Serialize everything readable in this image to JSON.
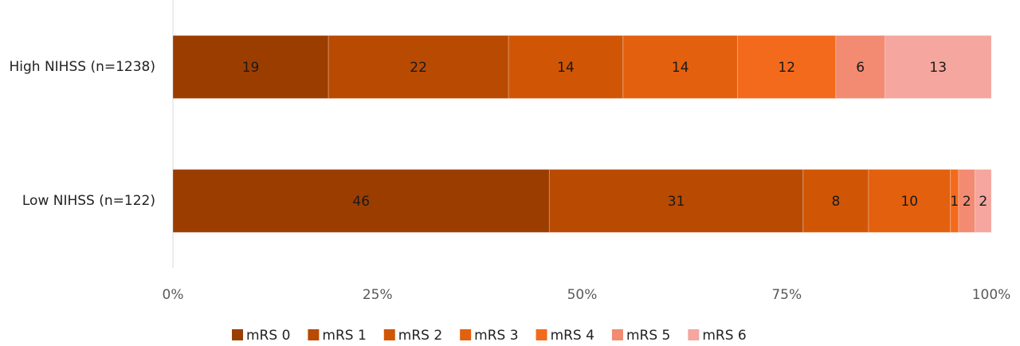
{
  "chart_data": {
    "type": "bar",
    "orientation": "horizontal",
    "stacked": true,
    "legend": "bottom",
    "categories": [
      "High NIHSS (n=1238)",
      "Low NIHSS (n=122)"
    ],
    "series": [
      {
        "name": "mRS 0",
        "color": "#9c3d00",
        "values": [
          19,
          46
        ]
      },
      {
        "name": "mRS 1",
        "color": "#b84a02",
        "values": [
          22,
          31
        ]
      },
      {
        "name": "mRS 2",
        "color": "#d05606",
        "values": [
          14,
          8
        ]
      },
      {
        "name": "mRS 3",
        "color": "#e3600e",
        "values": [
          14,
          10
        ]
      },
      {
        "name": "mRS 4",
        "color": "#f46a1c",
        "values": [
          12,
          1
        ]
      },
      {
        "name": "mRS 5",
        "color": "#f28b72",
        "values": [
          6,
          2
        ]
      },
      {
        "name": "mRS 6",
        "color": "#f5a69e",
        "values": [
          13,
          2
        ]
      }
    ],
    "xlim": [
      0,
      100
    ],
    "xticks": [
      {
        "value": 0,
        "label": "0%"
      },
      {
        "value": 25,
        "label": "25%"
      },
      {
        "value": 50,
        "label": "50%"
      },
      {
        "value": 75,
        "label": "75%"
      },
      {
        "value": 100,
        "label": "100%"
      }
    ]
  }
}
